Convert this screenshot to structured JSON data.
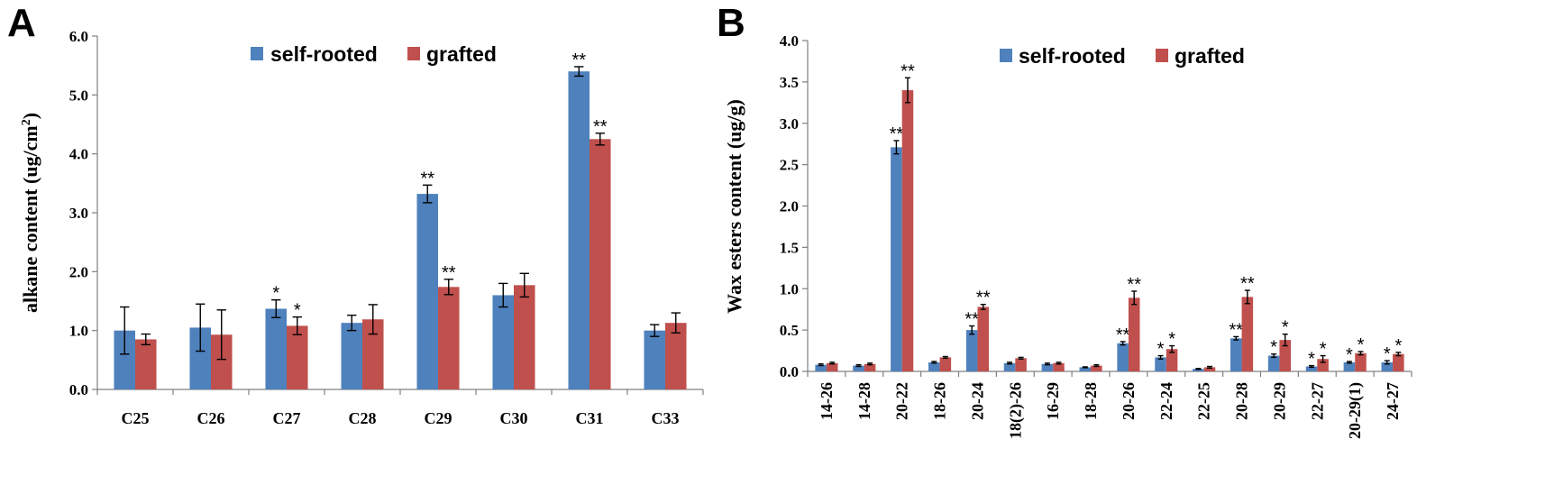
{
  "colors": {
    "self_rooted": "#4f81bd",
    "grafted": "#c0504d"
  },
  "chart_data": [
    {
      "panel": "A",
      "type": "bar",
      "ylabel_main": "alkane content (ug/cm",
      "ylabel_sup": "2",
      "ylabel_end": ")",
      "xlabel": "",
      "ylim": [
        0,
        6
      ],
      "yticks": [
        "0.0",
        "1.0",
        "2.0",
        "3.0",
        "4.0",
        "5.0",
        "6.0"
      ],
      "categories": [
        "C25",
        "C26",
        "C27",
        "C28",
        "C29",
        "C30",
        "C31",
        "C33"
      ],
      "series": [
        {
          "name": "self-rooted",
          "values": [
            1.0,
            1.05,
            1.37,
            1.13,
            3.32,
            1.6,
            5.4,
            1.0
          ],
          "errors": [
            0.4,
            0.4,
            0.15,
            0.13,
            0.15,
            0.2,
            0.08,
            0.1
          ],
          "marks": [
            "",
            "",
            "*",
            "",
            "**",
            "",
            "**",
            ""
          ]
        },
        {
          "name": "grafted",
          "values": [
            0.85,
            0.93,
            1.08,
            1.19,
            1.74,
            1.77,
            4.25,
            1.13
          ],
          "errors": [
            0.09,
            0.42,
            0.15,
            0.25,
            0.13,
            0.2,
            0.1,
            0.17
          ],
          "marks": [
            "",
            "",
            "*",
            "",
            "**",
            "",
            "**",
            ""
          ]
        }
      ]
    },
    {
      "panel": "B",
      "type": "bar",
      "ylabel_main": "Wax esters content (ug/g)",
      "xlabel": "",
      "ylim": [
        0,
        4
      ],
      "yticks": [
        "0.0",
        "0.5",
        "1.0",
        "1.5",
        "2.0",
        "2.5",
        "3.0",
        "3.5",
        "4.0"
      ],
      "categories": [
        "14-26",
        "14-28",
        "20-22",
        "18-26",
        "20-24",
        "18(2)-26",
        "16-29",
        "18-28",
        "20-26",
        "22-24",
        "22-25",
        "20-28",
        "20-29",
        "22-27",
        "20-29(1)",
        "24-27"
      ],
      "series": [
        {
          "name": "self-rooted",
          "values": [
            0.08,
            0.07,
            2.71,
            0.11,
            0.5,
            0.1,
            0.09,
            0.05,
            0.34,
            0.17,
            0.03,
            0.4,
            0.19,
            0.06,
            0.11,
            0.11
          ],
          "errors": [
            0.01,
            0.01,
            0.08,
            0.01,
            0.05,
            0.01,
            0.01,
            0.005,
            0.02,
            0.02,
            0.005,
            0.02,
            0.02,
            0.01,
            0.01,
            0.02
          ],
          "marks": [
            "",
            "",
            "**",
            "",
            "**",
            "",
            "",
            "",
            "**",
            "*",
            "",
            "**",
            "*",
            "*",
            "*",
            "*"
          ]
        },
        {
          "name": "grafted",
          "values": [
            0.1,
            0.09,
            3.4,
            0.17,
            0.78,
            0.16,
            0.1,
            0.07,
            0.89,
            0.27,
            0.05,
            0.9,
            0.38,
            0.15,
            0.22,
            0.21
          ],
          "errors": [
            0.01,
            0.01,
            0.15,
            0.01,
            0.03,
            0.01,
            0.01,
            0.01,
            0.08,
            0.04,
            0.01,
            0.08,
            0.07,
            0.04,
            0.02,
            0.02
          ],
          "marks": [
            "",
            "",
            "**",
            "",
            "**",
            "",
            "",
            "",
            "**",
            "*",
            "",
            "**",
            "*",
            "*",
            "*",
            "*"
          ]
        }
      ]
    }
  ]
}
